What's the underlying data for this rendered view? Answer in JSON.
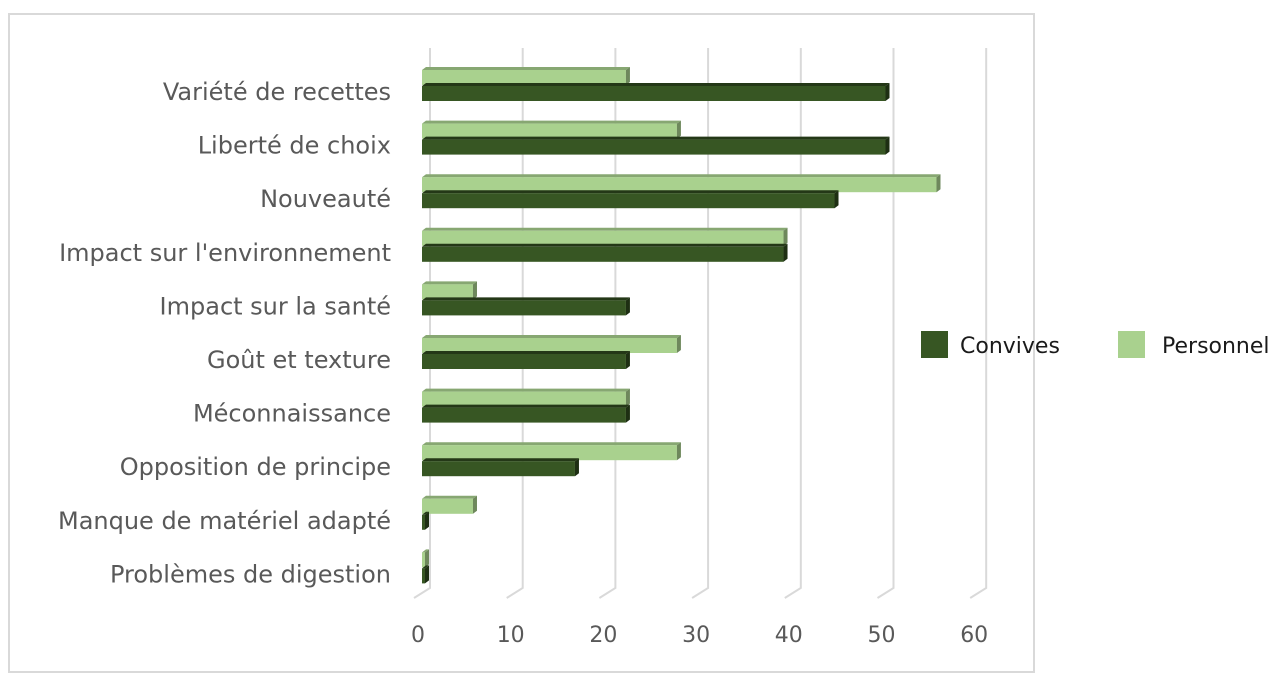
{
  "chart_data": {
    "type": "bar",
    "orientation": "horizontal",
    "style": "3d-clustered",
    "categories": [
      "Variété de recettes",
      "Liberté de choix",
      "Nouveauté",
      "Impact sur l'environnement",
      "Impact sur la santé",
      "Goût et texture",
      "Méconnaissance",
      "Opposition de principe",
      "Manque de matériel adapté",
      "Problèmes de digestion"
    ],
    "series": [
      {
        "name": "Convives",
        "color": "#375623",
        "values": [
          50,
          50,
          44.5,
          39,
          22,
          22,
          22,
          16.5,
          0.3,
          0.3
        ]
      },
      {
        "name": "Personnel",
        "color": "#a9d18e",
        "values": [
          22,
          27.5,
          55.5,
          39,
          5.5,
          27.5,
          22,
          27.5,
          5.5,
          0.3
        ]
      }
    ],
    "xticks": [
      "0",
      "10",
      "20",
      "30",
      "40",
      "50",
      "60"
    ],
    "xlim": [
      0,
      60
    ],
    "grid": true,
    "legend": "right",
    "title": "",
    "xlabel": "",
    "ylabel": ""
  }
}
